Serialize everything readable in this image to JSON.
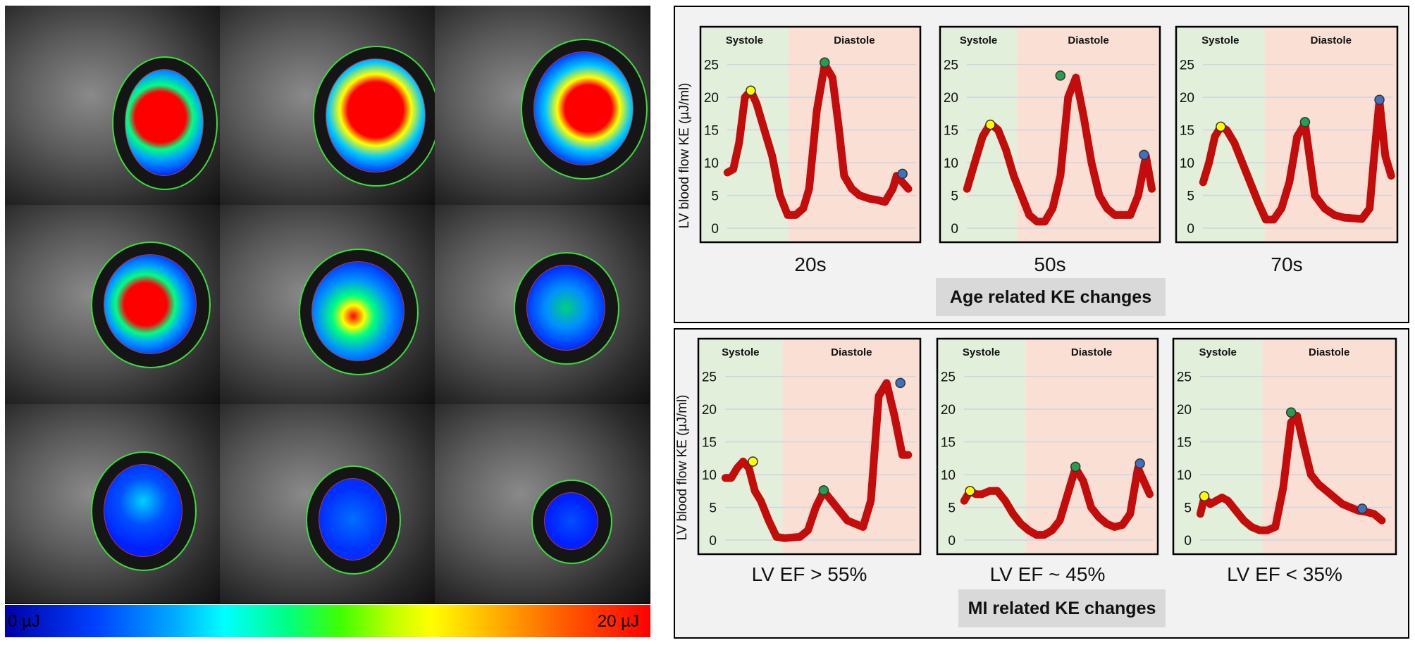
{
  "colorbar": {
    "min_label": "0 µJ",
    "max_label": "20 µJ"
  },
  "chart_data": [
    {
      "type": "line",
      "group": "Age related KE changes",
      "caption": "20s",
      "ylabel": "LV blood flow KE (µJ/ml)",
      "ylim": [
        0,
        27
      ],
      "yticks": [
        0,
        5,
        10,
        15,
        20,
        25
      ],
      "phases": [
        "Systole",
        "Diastole"
      ],
      "xlim": [
        0,
        1
      ],
      "systole_end": 0.4,
      "x": [
        0.03,
        0.06,
        0.09,
        0.12,
        0.15,
        0.18,
        0.22,
        0.26,
        0.3,
        0.34,
        0.38,
        0.42,
        0.45,
        0.49,
        0.53,
        0.57,
        0.6,
        0.63,
        0.67,
        0.71,
        0.76,
        0.8,
        0.84,
        0.88,
        0.9,
        0.93,
        0.96
      ],
      "values": [
        8.5,
        9,
        13,
        20,
        21,
        19,
        15,
        11,
        5,
        2,
        2,
        3,
        6,
        18,
        25,
        23,
        16,
        8,
        6,
        5,
        4.5,
        4.3,
        4,
        6,
        8,
        7,
        6
      ],
      "markers": [
        {
          "x": 0.15,
          "y": 21,
          "color": "#ffff00"
        },
        {
          "x": 0.53,
          "y": 25.3,
          "color": "#22a050"
        },
        {
          "x": 0.93,
          "y": 8.3,
          "color": "#4070c0"
        }
      ]
    },
    {
      "type": "line",
      "group": "Age related KE changes",
      "caption": "50s",
      "ylabel": "",
      "ylim": [
        0,
        27
      ],
      "yticks": [
        0,
        5,
        10,
        15,
        20,
        25
      ],
      "phases": [
        "Systole",
        "Diastole"
      ],
      "xlim": [
        0,
        1
      ],
      "systole_end": 0.35,
      "x": [
        0.03,
        0.07,
        0.11,
        0.15,
        0.19,
        0.23,
        0.27,
        0.31,
        0.35,
        0.39,
        0.43,
        0.47,
        0.51,
        0.55,
        0.59,
        0.63,
        0.67,
        0.71,
        0.75,
        0.79,
        0.83,
        0.87,
        0.91,
        0.95,
        0.98
      ],
      "values": [
        6,
        10,
        14,
        16,
        15,
        12,
        8,
        5,
        2,
        1,
        1,
        3,
        8,
        20,
        23,
        17,
        10,
        5,
        3,
        2,
        2,
        2,
        5,
        11,
        6
      ],
      "markers": [
        {
          "x": 0.15,
          "y": 15.8,
          "color": "#ffff00"
        },
        {
          "x": 0.51,
          "y": 23.3,
          "color": "#22a050"
        },
        {
          "x": 0.94,
          "y": 11.2,
          "color": "#4070c0"
        }
      ]
    },
    {
      "type": "line",
      "group": "Age related KE changes",
      "caption": "70s",
      "ylabel": "",
      "ylim": [
        0,
        27
      ],
      "yticks": [
        0,
        5,
        10,
        15,
        20,
        25
      ],
      "phases": [
        "Systole",
        "Diastole"
      ],
      "xlim": [
        0,
        1
      ],
      "systole_end": 0.4,
      "x": [
        0.03,
        0.06,
        0.09,
        0.12,
        0.15,
        0.19,
        0.23,
        0.27,
        0.31,
        0.35,
        0.39,
        0.43,
        0.47,
        0.51,
        0.55,
        0.6,
        0.65,
        0.7,
        0.75,
        0.8,
        0.84,
        0.88,
        0.9,
        0.93,
        0.96,
        0.99
      ],
      "values": [
        7,
        10,
        14,
        15.5,
        15,
        13,
        10,
        7,
        4,
        1.3,
        1.3,
        3,
        7,
        14,
        16,
        5,
        3,
        2,
        1.6,
        1.5,
        1.4,
        3,
        10,
        19.5,
        11,
        8
      ],
      "markers": [
        {
          "x": 0.12,
          "y": 15.5,
          "color": "#ffff00"
        },
        {
          "x": 0.55,
          "y": 16.2,
          "color": "#22a050"
        },
        {
          "x": 0.93,
          "y": 19.6,
          "color": "#4070c0"
        }
      ]
    },
    {
      "type": "line",
      "group": "MI related KE changes",
      "caption": "LV EF > 55%",
      "ylabel": "LV blood flow KE (µJ/ml)",
      "ylim": [
        0,
        27
      ],
      "yticks": [
        0,
        5,
        10,
        15,
        20,
        25
      ],
      "phases": [
        "Systole",
        "Diastole"
      ],
      "xlim": [
        0,
        1
      ],
      "systole_end": 0.38,
      "x": [
        0.03,
        0.06,
        0.09,
        0.12,
        0.15,
        0.18,
        0.21,
        0.25,
        0.29,
        0.33,
        0.37,
        0.41,
        0.45,
        0.49,
        0.53,
        0.57,
        0.61,
        0.65,
        0.69,
        0.73,
        0.77,
        0.81,
        0.85,
        0.89,
        0.93,
        0.96
      ],
      "values": [
        9.5,
        9.5,
        11,
        12,
        11,
        7.5,
        6,
        3,
        0.5,
        0.3,
        0.4,
        0.5,
        1.5,
        5,
        7.5,
        6,
        4.5,
        3,
        2.5,
        2,
        6,
        22,
        24,
        19,
        13,
        13
      ],
      "markers": [
        {
          "x": 0.17,
          "y": 12,
          "color": "#ffff00"
        },
        {
          "x": 0.53,
          "y": 7.6,
          "color": "#22a050"
        },
        {
          "x": 0.92,
          "y": 24,
          "color": "#4070c0"
        }
      ]
    },
    {
      "type": "line",
      "group": "MI related KE changes",
      "caption": "LV EF ~ 45%",
      "ylabel": "",
      "ylim": [
        0,
        27
      ],
      "yticks": [
        0,
        5,
        10,
        15,
        20,
        25
      ],
      "phases": [
        "Systole",
        "Diastole"
      ],
      "xlim": [
        0,
        1
      ],
      "systole_end": 0.4,
      "x": [
        0.03,
        0.06,
        0.09,
        0.12,
        0.16,
        0.2,
        0.24,
        0.28,
        0.32,
        0.36,
        0.4,
        0.44,
        0.48,
        0.52,
        0.56,
        0.6,
        0.64,
        0.68,
        0.72,
        0.76,
        0.8,
        0.84,
        0.88,
        0.92,
        0.95,
        0.98
      ],
      "values": [
        6,
        7.5,
        7,
        7,
        7.5,
        7.5,
        6,
        4,
        2.5,
        1.5,
        0.8,
        0.8,
        1.5,
        3,
        7,
        11,
        9,
        5,
        3.5,
        2.5,
        2,
        2.3,
        4,
        11,
        9,
        7
      ],
      "markers": [
        {
          "x": 0.06,
          "y": 7.5,
          "color": "#ffff00"
        },
        {
          "x": 0.6,
          "y": 11.2,
          "color": "#22a050"
        },
        {
          "x": 0.93,
          "y": 11.7,
          "color": "#4070c0"
        }
      ]
    },
    {
      "type": "line",
      "group": "MI related KE changes",
      "caption": "LV EF < 35%",
      "ylabel": "",
      "ylim": [
        0,
        27
      ],
      "yticks": [
        0,
        5,
        10,
        15,
        20,
        25
      ],
      "phases": [
        "Systole",
        "Diastole"
      ],
      "xlim": [
        0,
        1
      ],
      "systole_end": 0.4,
      "x": [
        0.03,
        0.05,
        0.08,
        0.11,
        0.14,
        0.17,
        0.21,
        0.25,
        0.29,
        0.33,
        0.37,
        0.41,
        0.45,
        0.49,
        0.52,
        0.55,
        0.59,
        0.63,
        0.67,
        0.71,
        0.75,
        0.79,
        0.83,
        0.87,
        0.91,
        0.95
      ],
      "values": [
        4,
        6.5,
        5.5,
        6,
        6.5,
        6,
        4.5,
        3,
        2,
        1.5,
        1.5,
        2,
        8,
        18,
        19,
        15,
        10,
        8.5,
        7.5,
        6.5,
        5.5,
        5,
        4.5,
        4.3,
        4,
        3
      ],
      "markers": [
        {
          "x": 0.05,
          "y": 6.7,
          "color": "#ffff00"
        },
        {
          "x": 0.49,
          "y": 19.5,
          "color": "#22a050"
        },
        {
          "x": 0.85,
          "y": 4.8,
          "color": "#4070c0"
        }
      ]
    }
  ],
  "panels": {
    "age_title": "Age related KE changes",
    "mi_title": "MI related KE changes"
  },
  "style": {
    "line_color": "#c00000",
    "systole_bg": "#e2efdb",
    "diastole_bg": "#fae0d4",
    "grid_color": "#d0d4e2"
  }
}
